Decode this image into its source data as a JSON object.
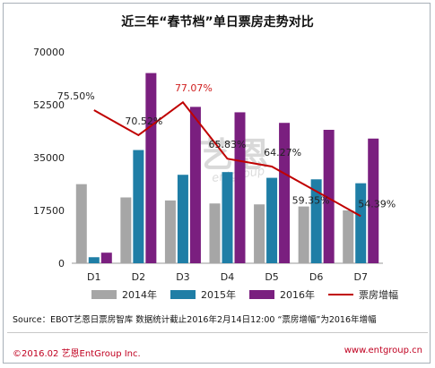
{
  "title": "近三年“春节档”单日票房走势对比",
  "watermark": {
    "text": "艺恩",
    "sub": "entgroup"
  },
  "footer": {
    "source": "Source：EBOT艺恩日票房智库  数据统计截止2016年2月14日12:00  “票房增幅”为2016年增幅",
    "copyright": "©2016.02  艺恩EntGroup Inc.",
    "website": "www.entgroup.cn"
  },
  "colors": {
    "s2014": "#a6a6a6",
    "s2015": "#1f7ea6",
    "s2016": "#7a1f7f",
    "line": "#c00000",
    "highlight": "#d02020"
  },
  "chart_data": {
    "type": "bar",
    "categories": [
      "D1",
      "D2",
      "D3",
      "D4",
      "D5",
      "D6",
      "D7"
    ],
    "ylim": [
      0,
      70000
    ],
    "yticks": [
      "0",
      "17500",
      "35000",
      "52500",
      "70000"
    ],
    "series": [
      {
        "name": "2014年",
        "values": [
          26200,
          21800,
          20800,
          19800,
          19500,
          18800,
          17500
        ]
      },
      {
        "name": "2015年",
        "values": [
          2000,
          37500,
          29300,
          30200,
          28300,
          27800,
          26500
        ]
      },
      {
        "name": "2016年",
        "values": [
          3500,
          63000,
          51800,
          50000,
          46500,
          44200,
          41300
        ]
      }
    ],
    "line": {
      "name": "票房增幅",
      "values": [
        75.5,
        70.52,
        77.07,
        65.83,
        64.27,
        59.35,
        54.39
      ],
      "labels": [
        "75.50%",
        "70.52%",
        "77.07%",
        "65.83%",
        "64.27%",
        "59.35%",
        "54.39%"
      ]
    }
  }
}
